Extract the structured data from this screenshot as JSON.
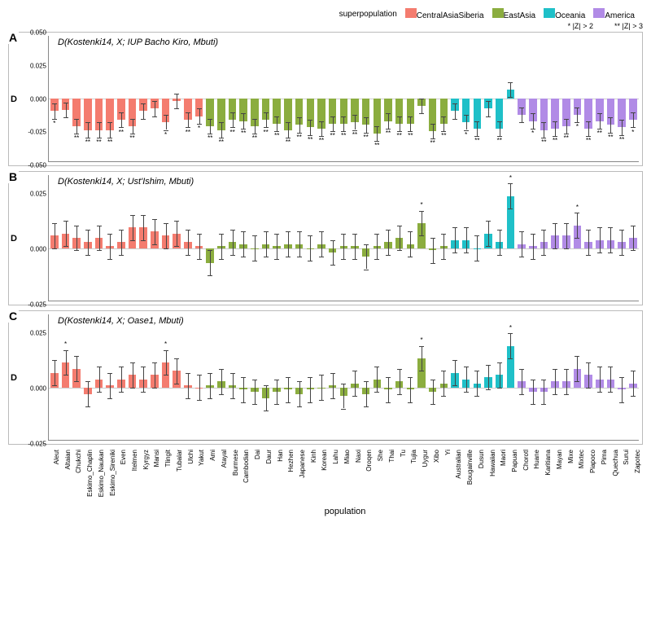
{
  "legend": {
    "title": "superpopulation",
    "items": [
      {
        "label": "CentralAsiaSiberia",
        "color": "#f47c6f"
      },
      {
        "label": "EastAsia",
        "color": "#8bad3f"
      },
      {
        "label": "Oceania",
        "color": "#1fc0c8"
      },
      {
        "label": "America",
        "color": "#b18be6"
      }
    ],
    "z_notes": [
      "*  |Z| > 2",
      "**  |Z| > 3"
    ]
  },
  "style": {
    "err_color": "#444444",
    "grid_color": "#cccccc",
    "axis_color": "#888888",
    "panel_border": "#bbbbbb",
    "bg": "#ffffff"
  },
  "x_label": "population",
  "y_label": "D",
  "populations": [
    {
      "name": "Aleut",
      "group": 0
    },
    {
      "name": "Altaian",
      "group": 0
    },
    {
      "name": "Chukchi",
      "group": 0
    },
    {
      "name": "Eskimo_Chaplin",
      "group": 0
    },
    {
      "name": "Eskimo_Naukan",
      "group": 0
    },
    {
      "name": "Eskimo_Sireniki",
      "group": 0
    },
    {
      "name": "Even",
      "group": 0
    },
    {
      "name": "Itelmen",
      "group": 0
    },
    {
      "name": "Kyrgyz",
      "group": 0
    },
    {
      "name": "Mansi",
      "group": 0
    },
    {
      "name": "Tlingit",
      "group": 0
    },
    {
      "name": "Tubalar",
      "group": 0
    },
    {
      "name": "Ulchi",
      "group": 0
    },
    {
      "name": "Yakut",
      "group": 0
    },
    {
      "name": "Ami",
      "group": 1
    },
    {
      "name": "Atayal",
      "group": 1
    },
    {
      "name": "Burmese",
      "group": 1
    },
    {
      "name": "Cambodian",
      "group": 1
    },
    {
      "name": "Dai",
      "group": 1
    },
    {
      "name": "Daur",
      "group": 1
    },
    {
      "name": "Han",
      "group": 1
    },
    {
      "name": "Hezhen",
      "group": 1
    },
    {
      "name": "Japanese",
      "group": 1
    },
    {
      "name": "Kinh",
      "group": 1
    },
    {
      "name": "Korean",
      "group": 1
    },
    {
      "name": "Lahu",
      "group": 1
    },
    {
      "name": "Miao",
      "group": 1
    },
    {
      "name": "Naxi",
      "group": 1
    },
    {
      "name": "Oroqen",
      "group": 1
    },
    {
      "name": "She",
      "group": 1
    },
    {
      "name": "Thai",
      "group": 1
    },
    {
      "name": "Tu",
      "group": 1
    },
    {
      "name": "Tujia",
      "group": 1
    },
    {
      "name": "Uygur",
      "group": 1
    },
    {
      "name": "Xibo",
      "group": 1
    },
    {
      "name": "Yi",
      "group": 1
    },
    {
      "name": "Australian",
      "group": 2
    },
    {
      "name": "Bougainville",
      "group": 2
    },
    {
      "name": "Dusun",
      "group": 2
    },
    {
      "name": "Hawaiian",
      "group": 2
    },
    {
      "name": "Maori",
      "group": 2
    },
    {
      "name": "Papuan",
      "group": 2
    },
    {
      "name": "Chorotl",
      "group": 3
    },
    {
      "name": "Huane",
      "group": 3
    },
    {
      "name": "Karitiana",
      "group": 3
    },
    {
      "name": "Mayan",
      "group": 3
    },
    {
      "name": "Mixe",
      "group": 3
    },
    {
      "name": "Mixtec",
      "group": 3
    },
    {
      "name": "Piapoco",
      "group": 3
    },
    {
      "name": "Pima",
      "group": 3
    },
    {
      "name": "Quechua",
      "group": 3
    },
    {
      "name": "Surui",
      "group": 3
    },
    {
      "name": "Zapotec",
      "group": 3
    }
  ],
  "panels": [
    {
      "letter": "A",
      "title": "D(Kostenki14, X; IUP Bacho Kiro, Mbuti)",
      "ylim": [
        -0.05,
        0.05
      ],
      "yticks": [
        -0.05,
        -0.025,
        0.0,
        0.025,
        0.05
      ],
      "err": 0.006,
      "sig_below": true,
      "data": [
        {
          "D": -0.01,
          "s": "*"
        },
        {
          "D": -0.009,
          "s": ""
        },
        {
          "D": -0.022,
          "s": "**"
        },
        {
          "D": -0.025,
          "s": "**"
        },
        {
          "D": -0.025,
          "s": "**"
        },
        {
          "D": -0.025,
          "s": "**"
        },
        {
          "D": -0.017,
          "s": "**"
        },
        {
          "D": -0.022,
          "s": "**"
        },
        {
          "D": -0.01,
          "s": ""
        },
        {
          "D": -0.008,
          "s": ""
        },
        {
          "D": -0.019,
          "s": "*"
        },
        {
          "D": -0.002,
          "s": ""
        },
        {
          "D": -0.017,
          "s": "**"
        },
        {
          "D": -0.014,
          "s": "*"
        },
        {
          "D": -0.022,
          "s": "**"
        },
        {
          "D": -0.025,
          "s": "**"
        },
        {
          "D": -0.017,
          "s": "**"
        },
        {
          "D": -0.018,
          "s": "**"
        },
        {
          "D": -0.022,
          "s": "**"
        },
        {
          "D": -0.017,
          "s": "**"
        },
        {
          "D": -0.02,
          "s": "**"
        },
        {
          "D": -0.025,
          "s": "**"
        },
        {
          "D": -0.021,
          "s": "**"
        },
        {
          "D": -0.023,
          "s": "**"
        },
        {
          "D": -0.024,
          "s": "**"
        },
        {
          "D": -0.02,
          "s": "**"
        },
        {
          "D": -0.02,
          "s": "**"
        },
        {
          "D": -0.019,
          "s": "**"
        },
        {
          "D": -0.021,
          "s": "**"
        },
        {
          "D": -0.028,
          "s": "**"
        },
        {
          "D": -0.018,
          "s": "**"
        },
        {
          "D": -0.02,
          "s": "**"
        },
        {
          "D": -0.02,
          "s": "**"
        },
        {
          "D": -0.006,
          "s": ""
        },
        {
          "D": -0.026,
          "s": "**"
        },
        {
          "D": -0.02,
          "s": "**"
        },
        {
          "D": -0.01,
          "s": ""
        },
        {
          "D": -0.019,
          "s": "*"
        },
        {
          "D": -0.024,
          "s": "**"
        },
        {
          "D": -0.008,
          "s": ""
        },
        {
          "D": -0.024,
          "s": "**"
        },
        {
          "D": 0.007,
          "s": ""
        },
        {
          "D": -0.013,
          "s": ""
        },
        {
          "D": -0.018,
          "s": "*"
        },
        {
          "D": -0.025,
          "s": "**"
        },
        {
          "D": -0.024,
          "s": "**"
        },
        {
          "D": -0.022,
          "s": "**"
        },
        {
          "D": -0.013,
          "s": "*"
        },
        {
          "D": -0.024,
          "s": "**"
        },
        {
          "D": -0.018,
          "s": "**"
        },
        {
          "D": -0.021,
          "s": "**"
        },
        {
          "D": -0.023,
          "s": "**"
        },
        {
          "D": -0.017,
          "s": "*"
        }
      ]
    },
    {
      "letter": "B",
      "title": "D(Kostenki14, X; Ust'Ishim, Mbuti)",
      "ylim": [
        -0.025,
        0.035
      ],
      "yticks": [
        -0.025,
        0.0,
        0.025
      ],
      "err": 0.006,
      "sig_below": false,
      "data": [
        {
          "D": 0.006,
          "s": ""
        },
        {
          "D": 0.007,
          "s": ""
        },
        {
          "D": 0.005,
          "s": ""
        },
        {
          "D": 0.003,
          "s": ""
        },
        {
          "D": 0.005,
          "s": ""
        },
        {
          "D": 0.001,
          "s": ""
        },
        {
          "D": 0.003,
          "s": ""
        },
        {
          "D": 0.01,
          "s": ""
        },
        {
          "D": 0.01,
          "s": ""
        },
        {
          "D": 0.008,
          "s": ""
        },
        {
          "D": 0.006,
          "s": ""
        },
        {
          "D": 0.007,
          "s": ""
        },
        {
          "D": 0.003,
          "s": ""
        },
        {
          "D": 0.001,
          "s": ""
        },
        {
          "D": -0.007,
          "s": ""
        },
        {
          "D": 0.001,
          "s": ""
        },
        {
          "D": 0.003,
          "s": ""
        },
        {
          "D": 0.002,
          "s": ""
        },
        {
          "D": 0.0,
          "s": ""
        },
        {
          "D": 0.002,
          "s": ""
        },
        {
          "D": 0.001,
          "s": ""
        },
        {
          "D": 0.002,
          "s": ""
        },
        {
          "D": 0.002,
          "s": ""
        },
        {
          "D": 0.0,
          "s": ""
        },
        {
          "D": 0.002,
          "s": ""
        },
        {
          "D": -0.002,
          "s": ""
        },
        {
          "D": 0.001,
          "s": ""
        },
        {
          "D": 0.001,
          "s": ""
        },
        {
          "D": -0.004,
          "s": ""
        },
        {
          "D": 0.001,
          "s": ""
        },
        {
          "D": 0.003,
          "s": ""
        },
        {
          "D": 0.005,
          "s": ""
        },
        {
          "D": 0.002,
          "s": ""
        },
        {
          "D": 0.012,
          "s": "*"
        },
        {
          "D": -0.001,
          "s": ""
        },
        {
          "D": 0.001,
          "s": ""
        },
        {
          "D": 0.004,
          "s": ""
        },
        {
          "D": 0.004,
          "s": ""
        },
        {
          "D": 0.0,
          "s": ""
        },
        {
          "D": 0.007,
          "s": ""
        },
        {
          "D": 0.003,
          "s": ""
        },
        {
          "D": 0.025,
          "s": "*"
        },
        {
          "D": 0.002,
          "s": ""
        },
        {
          "D": 0.001,
          "s": ""
        },
        {
          "D": 0.003,
          "s": ""
        },
        {
          "D": 0.006,
          "s": ""
        },
        {
          "D": 0.006,
          "s": ""
        },
        {
          "D": 0.011,
          "s": "*"
        },
        {
          "D": 0.003,
          "s": ""
        },
        {
          "D": 0.004,
          "s": ""
        },
        {
          "D": 0.004,
          "s": ""
        },
        {
          "D": 0.003,
          "s": ""
        },
        {
          "D": 0.005,
          "s": ""
        }
      ]
    },
    {
      "letter": "C",
      "title": "D(Kostenki14, X; Oase1, Mbuti)",
      "ylim": [
        -0.025,
        0.035
      ],
      "yticks": [
        -0.025,
        0.0,
        0.025
      ],
      "err": 0.006,
      "sig_below": false,
      "data": [
        {
          "D": 0.007,
          "s": ""
        },
        {
          "D": 0.012,
          "s": "*"
        },
        {
          "D": 0.009,
          "s": ""
        },
        {
          "D": -0.003,
          "s": ""
        },
        {
          "D": 0.004,
          "s": ""
        },
        {
          "D": 0.001,
          "s": ""
        },
        {
          "D": 0.004,
          "s": ""
        },
        {
          "D": 0.006,
          "s": ""
        },
        {
          "D": 0.004,
          "s": ""
        },
        {
          "D": 0.006,
          "s": ""
        },
        {
          "D": 0.012,
          "s": "*"
        },
        {
          "D": 0.008,
          "s": ""
        },
        {
          "D": 0.001,
          "s": ""
        },
        {
          "D": 0.0,
          "s": ""
        },
        {
          "D": 0.001,
          "s": ""
        },
        {
          "D": 0.003,
          "s": ""
        },
        {
          "D": 0.001,
          "s": ""
        },
        {
          "D": -0.001,
          "s": ""
        },
        {
          "D": -0.002,
          "s": ""
        },
        {
          "D": -0.005,
          "s": ""
        },
        {
          "D": -0.002,
          "s": ""
        },
        {
          "D": -0.001,
          "s": ""
        },
        {
          "D": -0.003,
          "s": ""
        },
        {
          "D": -0.001,
          "s": ""
        },
        {
          "D": 0.0,
          "s": ""
        },
        {
          "D": 0.001,
          "s": ""
        },
        {
          "D": -0.004,
          "s": ""
        },
        {
          "D": 0.002,
          "s": ""
        },
        {
          "D": -0.003,
          "s": ""
        },
        {
          "D": 0.004,
          "s": ""
        },
        {
          "D": -0.001,
          "s": ""
        },
        {
          "D": 0.003,
          "s": ""
        },
        {
          "D": -0.001,
          "s": ""
        },
        {
          "D": 0.014,
          "s": "*"
        },
        {
          "D": -0.002,
          "s": ""
        },
        {
          "D": 0.002,
          "s": ""
        },
        {
          "D": 0.007,
          "s": ""
        },
        {
          "D": 0.004,
          "s": ""
        },
        {
          "D": 0.002,
          "s": ""
        },
        {
          "D": 0.005,
          "s": ""
        },
        {
          "D": 0.006,
          "s": ""
        },
        {
          "D": 0.02,
          "s": "*"
        },
        {
          "D": 0.003,
          "s": ""
        },
        {
          "D": -0.002,
          "s": ""
        },
        {
          "D": -0.002,
          "s": ""
        },
        {
          "D": 0.003,
          "s": ""
        },
        {
          "D": 0.003,
          "s": ""
        },
        {
          "D": 0.009,
          "s": ""
        },
        {
          "D": 0.006,
          "s": ""
        },
        {
          "D": 0.004,
          "s": ""
        },
        {
          "D": 0.004,
          "s": ""
        },
        {
          "D": -0.001,
          "s": ""
        },
        {
          "D": 0.002,
          "s": ""
        }
      ]
    }
  ]
}
